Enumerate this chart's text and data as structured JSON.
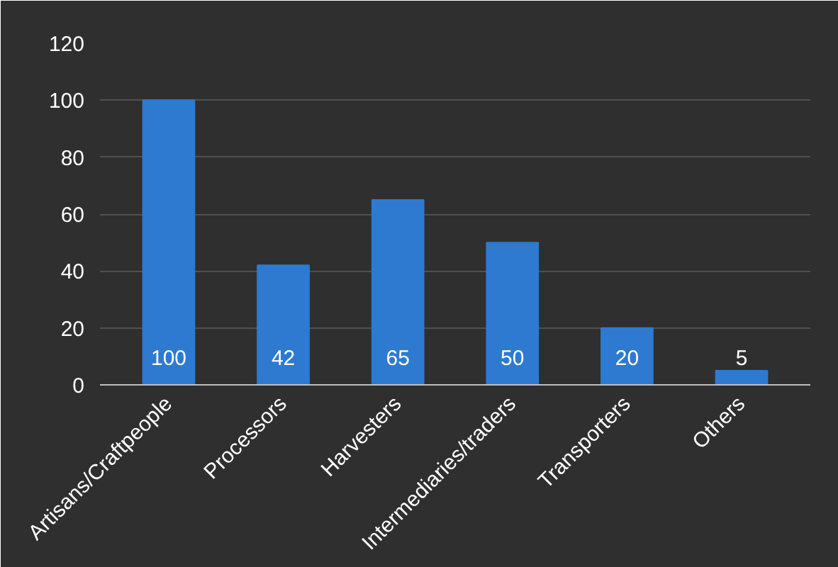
{
  "chart_data": {
    "type": "bar",
    "categories": [
      "Artisans/Craftpeople",
      "Processors",
      "Harvesters",
      "Intermediaries/traders",
      "Transporters",
      "Others"
    ],
    "values": [
      100,
      42,
      65,
      50,
      20,
      5
    ],
    "color": "#2e7ad0",
    "ylim": [
      0,
      120
    ],
    "yticks": [
      0,
      20,
      40,
      60,
      80,
      100,
      120
    ],
    "grid": "y",
    "data_labels": true
  }
}
